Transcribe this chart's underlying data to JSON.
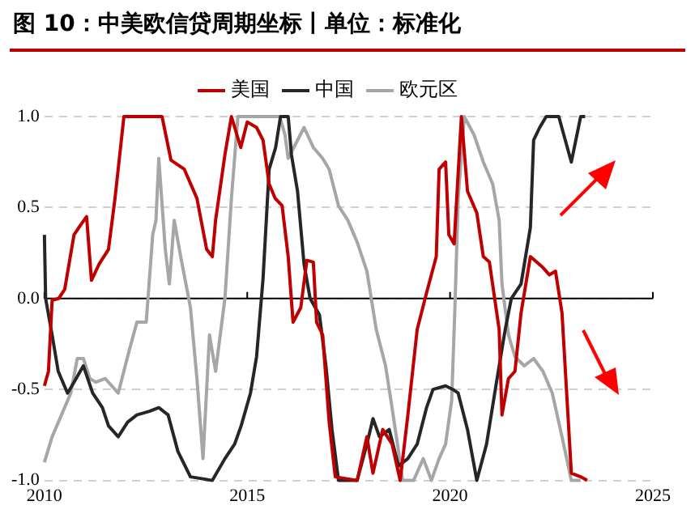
{
  "chart_data": {
    "type": "line",
    "title": "图 10：中美欧信贷周期坐标丨单位：标准化",
    "xlim": [
      2010,
      2025
    ],
    "xticks": [
      2010,
      2015,
      2020,
      2025
    ],
    "ylim": [
      -1.0,
      1.0
    ],
    "yticks": [
      {
        "value": -1,
        "label": "-1.0"
      },
      {
        "value": -0.5,
        "label": "-0.5"
      },
      {
        "value": 0,
        "label": "0.0"
      },
      {
        "value": 0.5,
        "label": "0.5"
      },
      {
        "value": 1,
        "label": "1.0"
      }
    ],
    "grid": "y",
    "legend": "top",
    "marker": "none",
    "line_style": "solid",
    "ref_lines": [
      {
        "axis": "y",
        "value": 0,
        "color": "#000000"
      }
    ],
    "series": [
      {
        "name": "美国",
        "color": "#c00000",
        "x": [
          2010.0,
          2010.1,
          2010.19,
          2010.35,
          2010.5,
          2010.73,
          2010.88,
          2011.04,
          2011.16,
          2011.35,
          2011.58,
          2011.74,
          2011.96,
          2012.9,
          2013.12,
          2013.45,
          2013.76,
          2014.0,
          2014.14,
          2014.22,
          2014.45,
          2014.61,
          2014.84,
          2015.0,
          2015.23,
          2015.39,
          2015.54,
          2015.69,
          2015.86,
          2016.01,
          2016.13,
          2016.32,
          2016.47,
          2016.63,
          2016.71,
          2016.86,
          2017.02,
          2017.17,
          2017.71,
          2017.95,
          2018.1,
          2018.34,
          2018.57,
          2018.77,
          2018.96,
          2019.19,
          2019.42,
          2019.66,
          2019.73,
          2019.89,
          2019.97,
          2020.1,
          2020.28,
          2020.43,
          2020.66,
          2020.82,
          2020.97,
          2021.21,
          2021.28,
          2021.44,
          2021.6,
          2021.75,
          2021.98,
          2022.29,
          2022.45,
          2022.6,
          2022.76,
          2022.99,
          2023.22,
          2023.38
        ],
        "values": [
          -0.48,
          -0.4,
          -0.01,
          0.0,
          0.05,
          0.35,
          0.4,
          0.45,
          0.1,
          0.19,
          0.27,
          0.55,
          1.0,
          1.0,
          0.76,
          0.71,
          0.55,
          0.27,
          0.23,
          0.43,
          0.79,
          1.0,
          0.83,
          0.97,
          0.94,
          0.87,
          0.63,
          0.55,
          0.51,
          0.23,
          -0.13,
          -0.05,
          0.21,
          0.2,
          -0.13,
          -0.2,
          -0.68,
          -0.98,
          -1.0,
          -0.76,
          -0.96,
          -0.72,
          -0.8,
          -1.0,
          -0.64,
          -0.17,
          0.03,
          0.23,
          0.71,
          0.75,
          0.35,
          0.3,
          1.0,
          0.59,
          0.47,
          0.23,
          0.2,
          -0.17,
          -0.64,
          -0.44,
          -0.4,
          -0.08,
          0.23,
          0.17,
          0.13,
          0.15,
          -0.08,
          -0.96,
          -0.98,
          -1.0
        ]
      },
      {
        "name": "中国",
        "color": "#262626",
        "x": [
          2010.0,
          2010.03,
          2010.19,
          2010.34,
          2010.57,
          2010.73,
          2010.96,
          2011.19,
          2011.43,
          2011.58,
          2011.82,
          2012.05,
          2012.28,
          2012.59,
          2012.82,
          2013.05,
          2013.29,
          2013.6,
          2014.14,
          2014.45,
          2014.69,
          2014.85,
          2015.08,
          2015.23,
          2015.39,
          2015.54,
          2015.7,
          2015.82,
          2016.01,
          2016.09,
          2016.24,
          2016.4,
          2016.55,
          2016.78,
          2016.94,
          2017.09,
          2017.25,
          2017.71,
          2017.95,
          2018.1,
          2018.26,
          2018.5,
          2018.73,
          2018.96,
          2019.19,
          2019.42,
          2019.58,
          2019.89,
          2020.07,
          2020.2,
          2020.43,
          2020.66,
          2020.9,
          2021.13,
          2021.36,
          2021.51,
          2021.75,
          2021.98,
          2022.06,
          2022.21,
          2022.37,
          2022.68,
          2022.99,
          2023.22,
          2023.33
        ],
        "values": [
          0.35,
          0.0,
          -0.2,
          -0.4,
          -0.52,
          -0.46,
          -0.37,
          -0.52,
          -0.6,
          -0.7,
          -0.76,
          -0.68,
          -0.64,
          -0.62,
          -0.6,
          -0.64,
          -0.84,
          -0.98,
          -1.0,
          -0.88,
          -0.8,
          -0.7,
          -0.52,
          -0.32,
          0.11,
          0.71,
          0.83,
          1.0,
          1.0,
          0.79,
          0.59,
          0.19,
          0.0,
          -0.09,
          -0.37,
          -0.72,
          -1.0,
          -1.0,
          -0.8,
          -0.66,
          -0.76,
          -0.72,
          -0.92,
          -0.88,
          -0.8,
          -0.6,
          -0.5,
          -0.48,
          -0.5,
          -0.52,
          -0.72,
          -1.0,
          -0.8,
          -0.48,
          -0.17,
          0.0,
          0.08,
          0.39,
          0.87,
          0.94,
          1.0,
          1.0,
          0.75,
          1.0,
          1.0
        ]
      },
      {
        "name": "欧元区",
        "color": "#a6a6a6",
        "x": [
          2010.0,
          2010.19,
          2010.42,
          2010.65,
          2010.81,
          2010.96,
          2011.12,
          2011.27,
          2011.5,
          2011.82,
          2012.05,
          2012.28,
          2012.51,
          2012.67,
          2012.75,
          2012.82,
          2012.98,
          2013.08,
          2013.2,
          2013.36,
          2013.6,
          2013.76,
          2013.91,
          2014.07,
          2014.22,
          2014.45,
          2014.61,
          2014.77,
          2015.8,
          2015.93,
          2016.01,
          2016.24,
          2016.4,
          2016.63,
          2016.86,
          2017.02,
          2017.25,
          2017.48,
          2017.71,
          2017.95,
          2018.18,
          2018.41,
          2018.57,
          2018.73,
          2018.83,
          2019.1,
          2019.34,
          2019.54,
          2019.73,
          2019.89,
          2020.04,
          2020.12,
          2020.2,
          2020.35,
          2020.59,
          2020.82,
          2021.05,
          2021.21,
          2021.28,
          2021.44,
          2021.6,
          2021.83,
          2022.06,
          2022.29,
          2022.52,
          2022.76,
          2022.99,
          2023.22
        ],
        "values": [
          -0.9,
          -0.76,
          -0.64,
          -0.52,
          -0.33,
          -0.33,
          -0.44,
          -0.46,
          -0.44,
          -0.52,
          -0.32,
          -0.13,
          -0.13,
          0.35,
          0.43,
          0.77,
          0.27,
          0.08,
          0.43,
          0.23,
          -0.05,
          -0.44,
          -0.88,
          -0.2,
          -0.4,
          0.0,
          0.55,
          1.0,
          1.0,
          0.9,
          0.77,
          0.87,
          0.94,
          0.83,
          0.77,
          0.71,
          0.51,
          0.43,
          0.31,
          0.15,
          -0.17,
          -0.37,
          -0.6,
          -0.84,
          -1.0,
          -1.0,
          -0.88,
          -1.0,
          -0.88,
          -0.8,
          -0.56,
          -0.05,
          0.55,
          1.0,
          0.9,
          0.75,
          0.63,
          0.43,
          0.08,
          -0.2,
          -0.32,
          -0.37,
          -0.33,
          -0.4,
          -0.52,
          -0.76,
          -1.0,
          -1.0
        ]
      }
    ]
  }
}
